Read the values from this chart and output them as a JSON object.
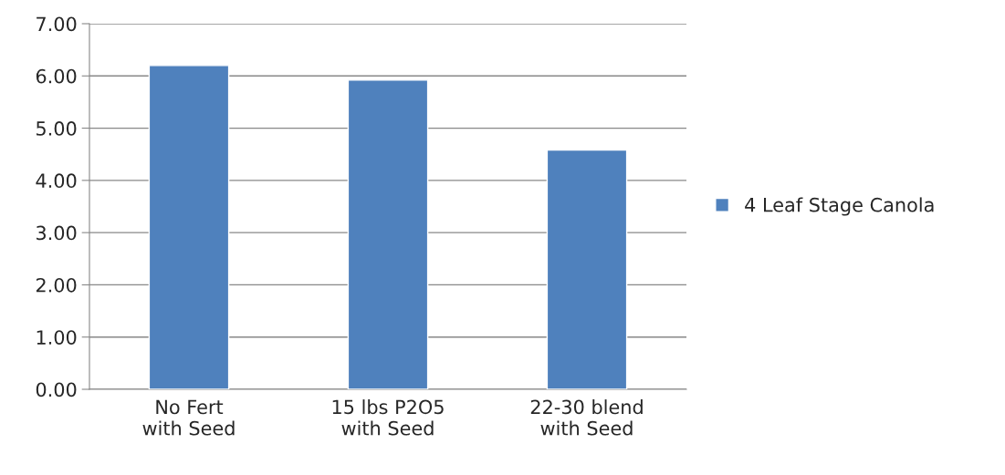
{
  "chart_data": {
    "type": "bar",
    "categories": [
      "No Fert with Seed",
      "15 lbs P2O5 with Seed",
      "22-30 blend with Seed"
    ],
    "series": [
      {
        "name": "4 Leaf Stage Canola",
        "color": "#4f81bd",
        "values": [
          6.2,
          5.92,
          4.58
        ]
      }
    ],
    "ylim": [
      0,
      7
    ],
    "yticks": [
      {
        "value": 0,
        "label": "0.00"
      },
      {
        "value": 1,
        "label": "1.00"
      },
      {
        "value": 2,
        "label": "2.00"
      },
      {
        "value": 3,
        "label": "3.00"
      },
      {
        "value": 4,
        "label": "4.00"
      },
      {
        "value": 5,
        "label": "5.00"
      },
      {
        "value": 6,
        "label": "6.00"
      },
      {
        "value": 7,
        "label": "7.00"
      }
    ],
    "grid": "y",
    "legend": "right"
  }
}
